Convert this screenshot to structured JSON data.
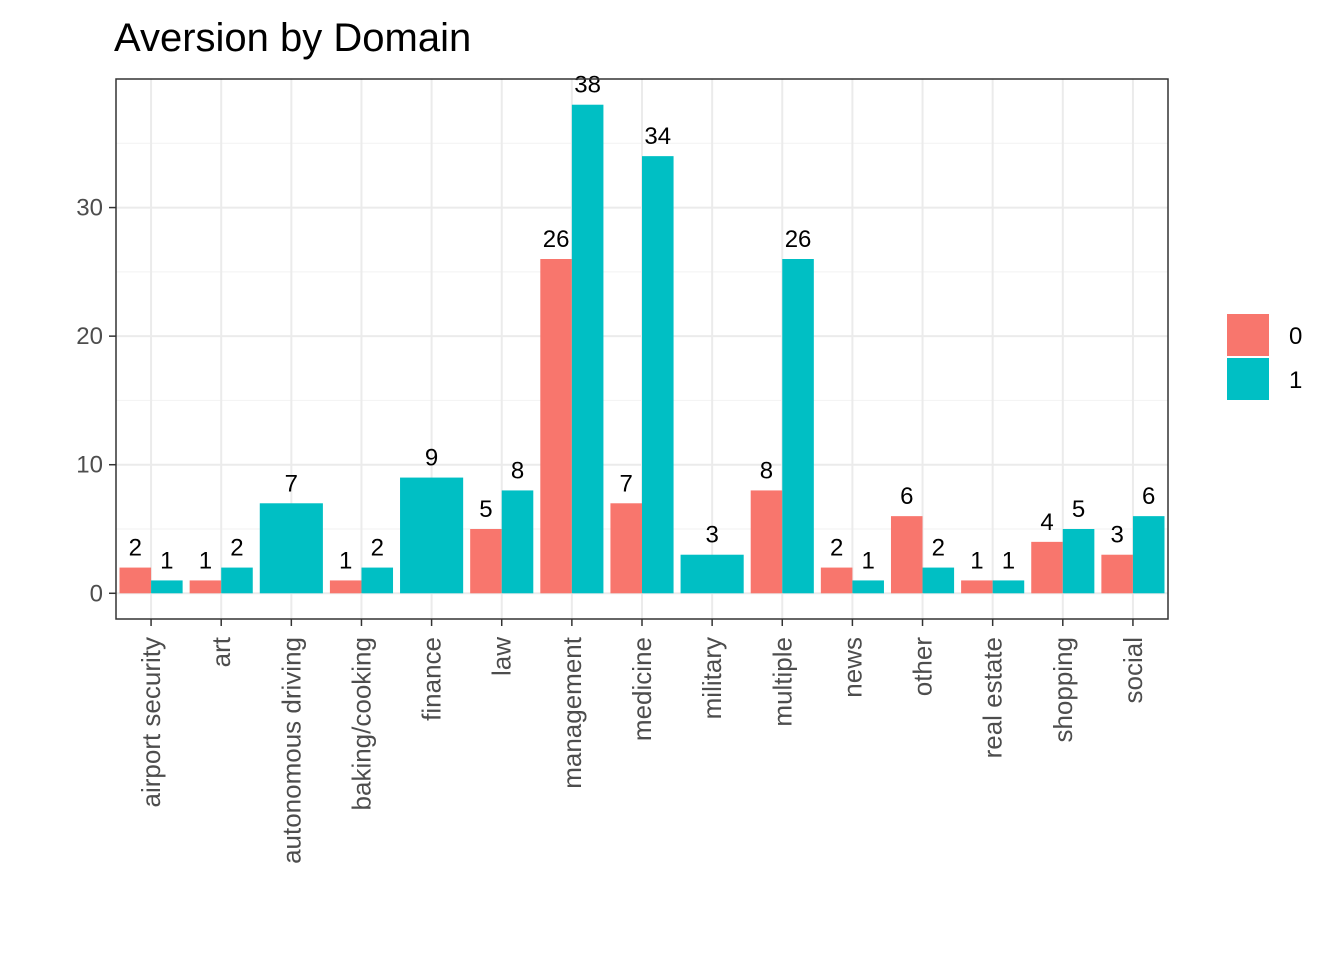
{
  "chart_data": {
    "type": "bar",
    "title": "Aversion by Domain",
    "xlabel": "",
    "ylabel": "",
    "ylim": [
      -2,
      40
    ],
    "yticks": [
      0,
      10,
      20,
      30
    ],
    "grid": true,
    "legend_position": "right",
    "categories": [
      "airport security",
      "art",
      "autonomous driving",
      "baking/cooking",
      "finance",
      "law",
      "management",
      "medicine",
      "military",
      "multiple",
      "news",
      "other",
      "real estate",
      "shopping",
      "social"
    ],
    "series": [
      {
        "name": "0",
        "color": "#F8766D",
        "values": [
          2,
          1,
          null,
          1,
          null,
          5,
          26,
          7,
          null,
          8,
          2,
          6,
          1,
          4,
          3
        ]
      },
      {
        "name": "1",
        "color": "#00BFC4",
        "values": [
          1,
          2,
          7,
          2,
          9,
          8,
          38,
          34,
          3,
          26,
          1,
          2,
          1,
          5,
          6
        ]
      }
    ]
  }
}
